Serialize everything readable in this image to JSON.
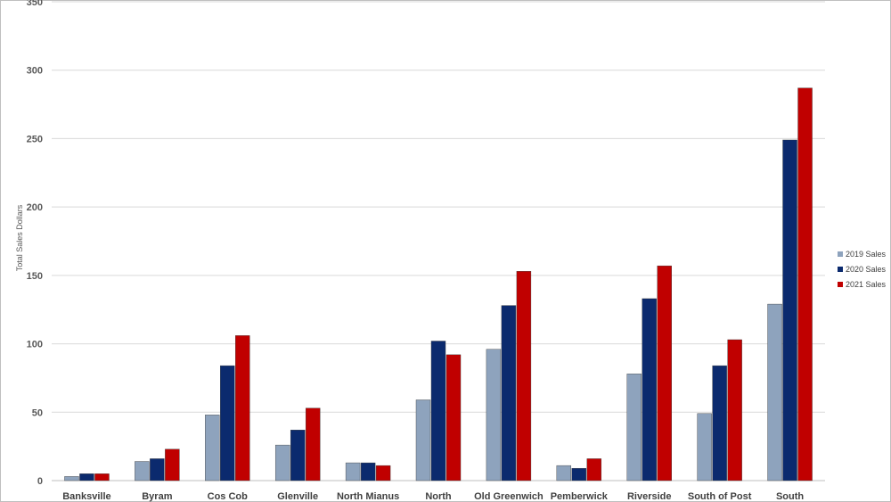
{
  "chart_data": {
    "type": "bar",
    "ylabel": "Total Sales Dollars",
    "ylim": [
      0,
      350
    ],
    "yticks": [
      "0",
      "50",
      "100",
      "150",
      "200",
      "250",
      "300",
      "350"
    ],
    "grid": true,
    "legend_position": "right",
    "categories": [
      "Banksville",
      "Byram",
      "Cos Cob",
      "Glenville",
      "North Mianus",
      "North",
      "Old Greenwich",
      "Pemberwick",
      "Riverside",
      "South of Post",
      "South"
    ],
    "series": [
      {
        "name": "2019 Sales",
        "color": "#8EA3BD",
        "values": [
          3,
          14,
          48,
          26,
          13,
          59,
          96,
          11,
          78,
          49,
          129
        ]
      },
      {
        "name": "2020 Sales",
        "color": "#0B2A6E",
        "values": [
          5,
          16,
          84,
          37,
          13,
          102,
          128,
          9,
          133,
          84,
          249
        ]
      },
      {
        "name": "2021 Sales",
        "color": "#C00000",
        "values": [
          5,
          23,
          106,
          53,
          11,
          92,
          153,
          16,
          157,
          103,
          287
        ]
      }
    ]
  }
}
